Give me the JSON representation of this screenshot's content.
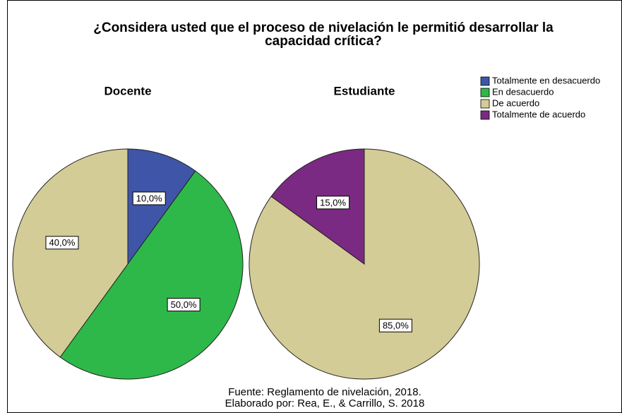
{
  "title": [
    "¿Considera usted que el proceso de nivelación le permitió desarrollar la",
    "capacidad crítica?"
  ],
  "legend": {
    "categories": [
      "Totalmente en desacuerdo",
      "En desacuerdo",
      "De acuerdo",
      "Totalmente de acuerdo"
    ],
    "colors": [
      "#3f55a8",
      "#2eb84a",
      "#d4cc96",
      "#7a2a82"
    ]
  },
  "chart_data": [
    {
      "type": "pie",
      "title": "Docente",
      "categories": [
        "Totalmente en desacuerdo",
        "En desacuerdo",
        "De acuerdo"
      ],
      "values": [
        10,
        50,
        40
      ],
      "value_labels": [
        "10,0%",
        "50,0%",
        "40,0%"
      ],
      "colors": [
        "#3f55a8",
        "#2eb84a",
        "#d4cc96"
      ]
    },
    {
      "type": "pie",
      "title": "Estudiante",
      "categories": [
        "De acuerdo",
        "Totalmente de acuerdo"
      ],
      "values": [
        85,
        15
      ],
      "value_labels": [
        "85,0%",
        "15,0%"
      ],
      "colors": [
        "#d4cc96",
        "#7a2a82"
      ]
    }
  ],
  "source": [
    "Fuente: Reglamento de nivelación, 2018.",
    "Elaborado por: Rea, E., & Carrillo, S. 2018"
  ]
}
